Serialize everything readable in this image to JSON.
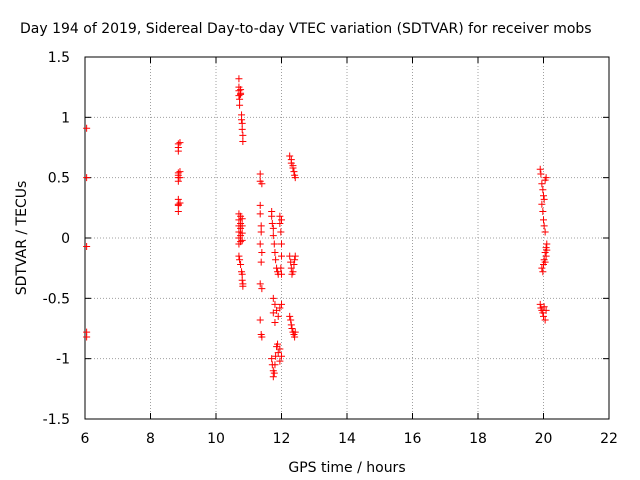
{
  "chart_data": {
    "type": "scatter",
    "title": "Day 194 of 2019, Sidereal Day-to-day VTEC variation (SDTVAR) for receiver mobs",
    "xlabel": "GPS time / hours",
    "ylabel": "SDTVAR / TECUs",
    "xlim": [
      6,
      22
    ],
    "ylim": [
      -1.5,
      1.5
    ],
    "xticks": [
      "6",
      "8",
      "10",
      "12",
      "14",
      "16",
      "18",
      "20",
      "22"
    ],
    "yticks": [
      "1.5",
      "1",
      "0.5",
      "0",
      "-0.5",
      "-1",
      "-1.5"
    ],
    "grid": true,
    "marker": "+",
    "color": "#ff0000",
    "series": [
      {
        "name": "SDTVAR",
        "points": [
          [
            6.05,
            0.91
          ],
          [
            6.05,
            0.5
          ],
          [
            6.05,
            -0.07
          ],
          [
            6.05,
            -0.78
          ],
          [
            6.05,
            -0.82
          ],
          [
            8.85,
            0.78
          ],
          [
            8.85,
            0.75
          ],
          [
            8.85,
            0.72
          ],
          [
            8.85,
            0.54
          ],
          [
            8.85,
            0.52
          ],
          [
            8.85,
            0.5
          ],
          [
            8.85,
            0.47
          ],
          [
            8.85,
            0.32
          ],
          [
            8.85,
            0.28
          ],
          [
            8.85,
            0.27
          ],
          [
            8.85,
            0.22
          ],
          [
            8.9,
            0.79
          ],
          [
            8.9,
            0.55
          ],
          [
            8.9,
            0.5
          ],
          [
            8.9,
            0.29
          ],
          [
            10.7,
            1.32
          ],
          [
            10.7,
            1.25
          ],
          [
            10.7,
            1.22
          ],
          [
            10.7,
            1.18
          ],
          [
            10.72,
            1.15
          ],
          [
            10.72,
            1.1
          ],
          [
            10.75,
            1.23
          ],
          [
            10.75,
            1.2
          ],
          [
            10.75,
            1.19
          ],
          [
            10.78,
            1.02
          ],
          [
            10.78,
            0.98
          ],
          [
            10.8,
            0.95
          ],
          [
            10.8,
            0.9
          ],
          [
            10.82,
            0.85
          ],
          [
            10.82,
            0.8
          ],
          [
            10.7,
            0.2
          ],
          [
            10.7,
            0.15
          ],
          [
            10.7,
            0.1
          ],
          [
            10.7,
            0.05
          ],
          [
            10.7,
            0.0
          ],
          [
            10.7,
            -0.05
          ],
          [
            10.75,
            0.18
          ],
          [
            10.75,
            0.12
          ],
          [
            10.75,
            0.08
          ],
          [
            10.75,
            0.02
          ],
          [
            10.75,
            -0.03
          ],
          [
            10.8,
            0.16
          ],
          [
            10.8,
            0.1
          ],
          [
            10.8,
            0.04
          ],
          [
            10.8,
            -0.02
          ],
          [
            10.7,
            -0.15
          ],
          [
            10.72,
            -0.18
          ],
          [
            10.75,
            -0.22
          ],
          [
            10.78,
            -0.28
          ],
          [
            10.8,
            -0.3
          ],
          [
            10.8,
            -0.35
          ],
          [
            10.82,
            -0.38
          ],
          [
            10.82,
            -0.4
          ],
          [
            11.35,
            0.53
          ],
          [
            11.35,
            0.47
          ],
          [
            11.4,
            0.45
          ],
          [
            11.35,
            0.27
          ],
          [
            11.35,
            0.2
          ],
          [
            11.38,
            0.1
          ],
          [
            11.38,
            0.05
          ],
          [
            11.35,
            -0.05
          ],
          [
            11.4,
            -0.12
          ],
          [
            11.38,
            -0.2
          ],
          [
            11.35,
            -0.38
          ],
          [
            11.4,
            -0.42
          ],
          [
            11.35,
            -0.68
          ],
          [
            11.38,
            -0.8
          ],
          [
            11.4,
            -0.82
          ],
          [
            11.7,
            0.22
          ],
          [
            11.7,
            0.18
          ],
          [
            11.72,
            0.12
          ],
          [
            11.75,
            0.08
          ],
          [
            11.75,
            0.02
          ],
          [
            11.78,
            -0.05
          ],
          [
            11.8,
            -0.12
          ],
          [
            11.82,
            -0.18
          ],
          [
            11.85,
            -0.25
          ],
          [
            11.88,
            -0.28
          ],
          [
            11.9,
            -0.3
          ],
          [
            11.95,
            0.18
          ],
          [
            11.95,
            0.12
          ],
          [
            12.0,
            0.15
          ],
          [
            11.98,
            0.05
          ],
          [
            12.0,
            -0.05
          ],
          [
            12.0,
            -0.15
          ],
          [
            11.98,
            -0.25
          ],
          [
            12.0,
            -0.3
          ],
          [
            11.75,
            -0.5
          ],
          [
            11.8,
            -0.55
          ],
          [
            11.85,
            -0.6
          ],
          [
            11.9,
            -0.65
          ],
          [
            11.8,
            -0.7
          ],
          [
            11.75,
            -0.62
          ],
          [
            11.95,
            -0.58
          ],
          [
            12.0,
            -0.55
          ],
          [
            11.7,
            -1.0
          ],
          [
            11.72,
            -1.05
          ],
          [
            11.75,
            -1.1
          ],
          [
            11.75,
            -1.15
          ],
          [
            11.78,
            -1.12
          ],
          [
            11.8,
            -1.05
          ],
          [
            11.82,
            -0.98
          ],
          [
            11.85,
            -0.9
          ],
          [
            11.88,
            -0.88
          ],
          [
            11.9,
            -0.95
          ],
          [
            11.95,
            -0.92
          ],
          [
            12.0,
            -0.98
          ],
          [
            11.95,
            -1.02
          ],
          [
            12.25,
            0.68
          ],
          [
            12.3,
            0.65
          ],
          [
            12.3,
            0.62
          ],
          [
            12.35,
            0.6
          ],
          [
            12.35,
            0.58
          ],
          [
            12.38,
            0.55
          ],
          [
            12.4,
            0.52
          ],
          [
            12.42,
            0.5
          ],
          [
            12.25,
            -0.15
          ],
          [
            12.28,
            -0.2
          ],
          [
            12.3,
            -0.25
          ],
          [
            12.32,
            -0.3
          ],
          [
            12.35,
            -0.28
          ],
          [
            12.38,
            -0.22
          ],
          [
            12.4,
            -0.18
          ],
          [
            12.42,
            -0.15
          ],
          [
            12.25,
            -0.65
          ],
          [
            12.28,
            -0.68
          ],
          [
            12.3,
            -0.72
          ],
          [
            12.32,
            -0.75
          ],
          [
            12.35,
            -0.78
          ],
          [
            12.38,
            -0.8
          ],
          [
            12.4,
            -0.82
          ],
          [
            12.42,
            -0.78
          ],
          [
            19.9,
            0.57
          ],
          [
            19.92,
            0.53
          ],
          [
            19.95,
            0.45
          ],
          [
            19.98,
            0.4
          ],
          [
            20.0,
            0.35
          ],
          [
            20.02,
            0.32
          ],
          [
            20.05,
            0.48
          ],
          [
            20.08,
            0.5
          ],
          [
            19.95,
            0.28
          ],
          [
            19.98,
            0.22
          ],
          [
            20.0,
            0.15
          ],
          [
            20.02,
            0.1
          ],
          [
            20.05,
            0.05
          ],
          [
            19.95,
            -0.25
          ],
          [
            19.98,
            -0.28
          ],
          [
            20.0,
            -0.22
          ],
          [
            20.02,
            -0.18
          ],
          [
            20.05,
            -0.12
          ],
          [
            20.08,
            -0.08
          ],
          [
            20.1,
            -0.05
          ],
          [
            20.05,
            -0.2
          ],
          [
            20.08,
            -0.15
          ],
          [
            20.1,
            -0.1
          ],
          [
            19.9,
            -0.55
          ],
          [
            19.92,
            -0.58
          ],
          [
            19.95,
            -0.6
          ],
          [
            19.98,
            -0.62
          ],
          [
            20.0,
            -0.65
          ],
          [
            20.02,
            -0.57
          ],
          [
            20.05,
            -0.68
          ],
          [
            20.08,
            -0.6
          ]
        ]
      }
    ]
  }
}
